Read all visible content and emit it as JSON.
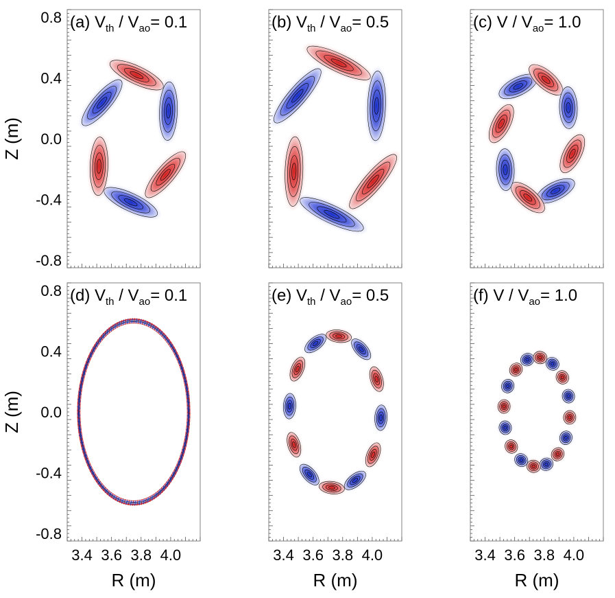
{
  "chart_data": {
    "type": "heatmap",
    "description_kind": "contour",
    "colors": {
      "positive": "#e03c3c",
      "negative": "#2a3fd0",
      "contour": "#000000",
      "frame": "#808080"
    },
    "shared_axes": {
      "xlabel": "R (m)",
      "ylabel": "Z (m)",
      "x_ticks": [
        "3.4",
        "3.6",
        "3.8",
        "4.0"
      ],
      "y_ticks": [
        "0.8",
        "0.4",
        "0.0",
        "-0.4",
        "-0.8"
      ],
      "xlim": [
        3.3,
        4.2
      ],
      "ylim": [
        -0.85,
        0.85
      ]
    },
    "panels": [
      {
        "label": "(a)",
        "symbol": "V",
        "sub": "th",
        "rest": " / V",
        "rest_sub": "ao",
        "value": "= 0.1",
        "mode_number": 3,
        "radius": 0.42
      },
      {
        "label": "(b)",
        "symbol": "V",
        "sub": "th",
        "rest": " / V",
        "rest_sub": "ao",
        "value": "= 0.5",
        "mode_number": 3,
        "radius": 0.5
      },
      {
        "label": "(c)",
        "symbol": "V",
        "sub": "",
        "rest": "   / V",
        "rest_sub": "ao",
        "value": "= 1.0",
        "mode_number": 4,
        "radius": 0.4
      },
      {
        "label": "(d)",
        "symbol": "V",
        "sub": "th",
        "rest": " / V",
        "rest_sub": "ao",
        "value": "= 0.1",
        "mode_number": 40,
        "radius": 0.6
      },
      {
        "label": "(e)",
        "symbol": "V",
        "sub": "th",
        "rest": " / V",
        "rest_sub": "ao",
        "value": "= 0.5",
        "mode_number": 6,
        "radius": 0.5
      },
      {
        "label": "(f)",
        "symbol": "V",
        "sub": "",
        "rest": "   / V",
        "rest_sub": "ao",
        "value": "= 1.0",
        "mode_number": 8,
        "radius": 0.36
      }
    ]
  }
}
